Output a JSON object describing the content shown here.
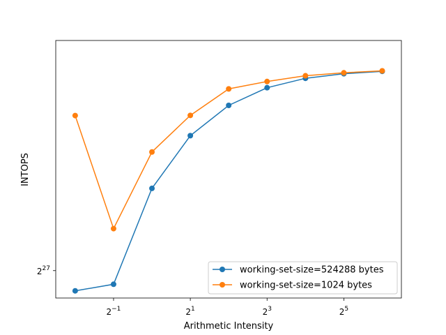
{
  "chart_data": {
    "type": "line",
    "xlabel": "Arithmetic Intensity",
    "ylabel": "INTOPS",
    "x_scale": "log2",
    "y_scale": "log2",
    "xlim": [
      0.176,
      90.5
    ],
    "ylim": [
      95000000,
      2450000000
    ],
    "x_ticks": [
      {
        "value": 0.5,
        "base": "2",
        "exp": "−1"
      },
      {
        "value": 2,
        "base": "2",
        "exp": "1"
      },
      {
        "value": 8,
        "base": "2",
        "exp": "3"
      },
      {
        "value": 32,
        "base": "2",
        "exp": "5"
      }
    ],
    "y_ticks": [
      {
        "value": 134217728,
        "base": "2",
        "exp": "27"
      }
    ],
    "grid": false,
    "legend_position": "lower-right",
    "series": [
      {
        "name": "working-set-size=524288 bytes",
        "color": "#1f77b4",
        "x": [
          0.25,
          0.5,
          1,
          2,
          4,
          8,
          16,
          32,
          64
        ],
        "y": [
          104000000,
          113000000,
          379000000,
          737000000,
          1080000000,
          1350000000,
          1520000000,
          1610000000,
          1660000000
        ]
      },
      {
        "name": "working-set-size=1024 bytes",
        "color": "#ff7f0e",
        "x": [
          0.25,
          0.5,
          1,
          2,
          4,
          8,
          16,
          32,
          64
        ],
        "y": [
          950000000,
          228000000,
          600000000,
          952000000,
          1330000000,
          1460000000,
          1570000000,
          1630000000,
          1670000000
        ]
      }
    ]
  }
}
